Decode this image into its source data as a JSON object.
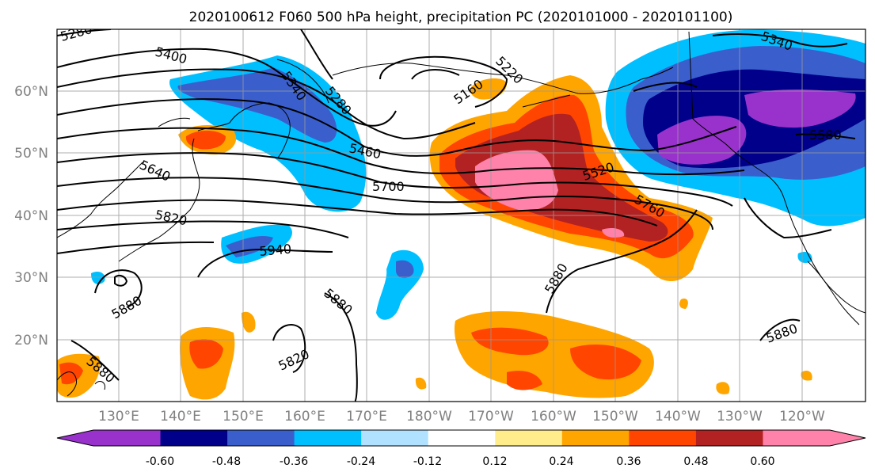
{
  "title": "2020100612 F060 500 hPa height, precipitation PC (2020101000 - 2020101100)",
  "lat_labels": [
    "60°N",
    "50°N",
    "40°N",
    "30°N",
    "20°N"
  ],
  "lon_labels": [
    "130°E",
    "140°E",
    "150°E",
    "160°E",
    "170°E",
    "180°W",
    "170°W",
    "160°W",
    "150°W",
    "140°W",
    "130°W",
    "120°W"
  ],
  "contour_labels": [
    "5280",
    "5400",
    "5340",
    "5280",
    "5160",
    "5220",
    "5340",
    "5580",
    "5460",
    "5520",
    "5640",
    "5700",
    "5760",
    "5820",
    "5940",
    "5880",
    "5880",
    "5820",
    "5880",
    "5880",
    "5880"
  ],
  "colorbar": {
    "tick_labels": [
      "-0.60",
      "-0.48",
      "-0.36",
      "-0.24",
      "-0.12",
      "0.12",
      "0.24",
      "0.36",
      "0.48",
      "0.60"
    ],
    "colors": [
      "#9932cc",
      "#00008b",
      "#3a5fcd",
      "#00bfff",
      "#b0e2ff",
      "#ffffff",
      "#ffec8b",
      "#ffa500",
      "#ff4500",
      "#b22222",
      "#ff82ab"
    ]
  }
}
